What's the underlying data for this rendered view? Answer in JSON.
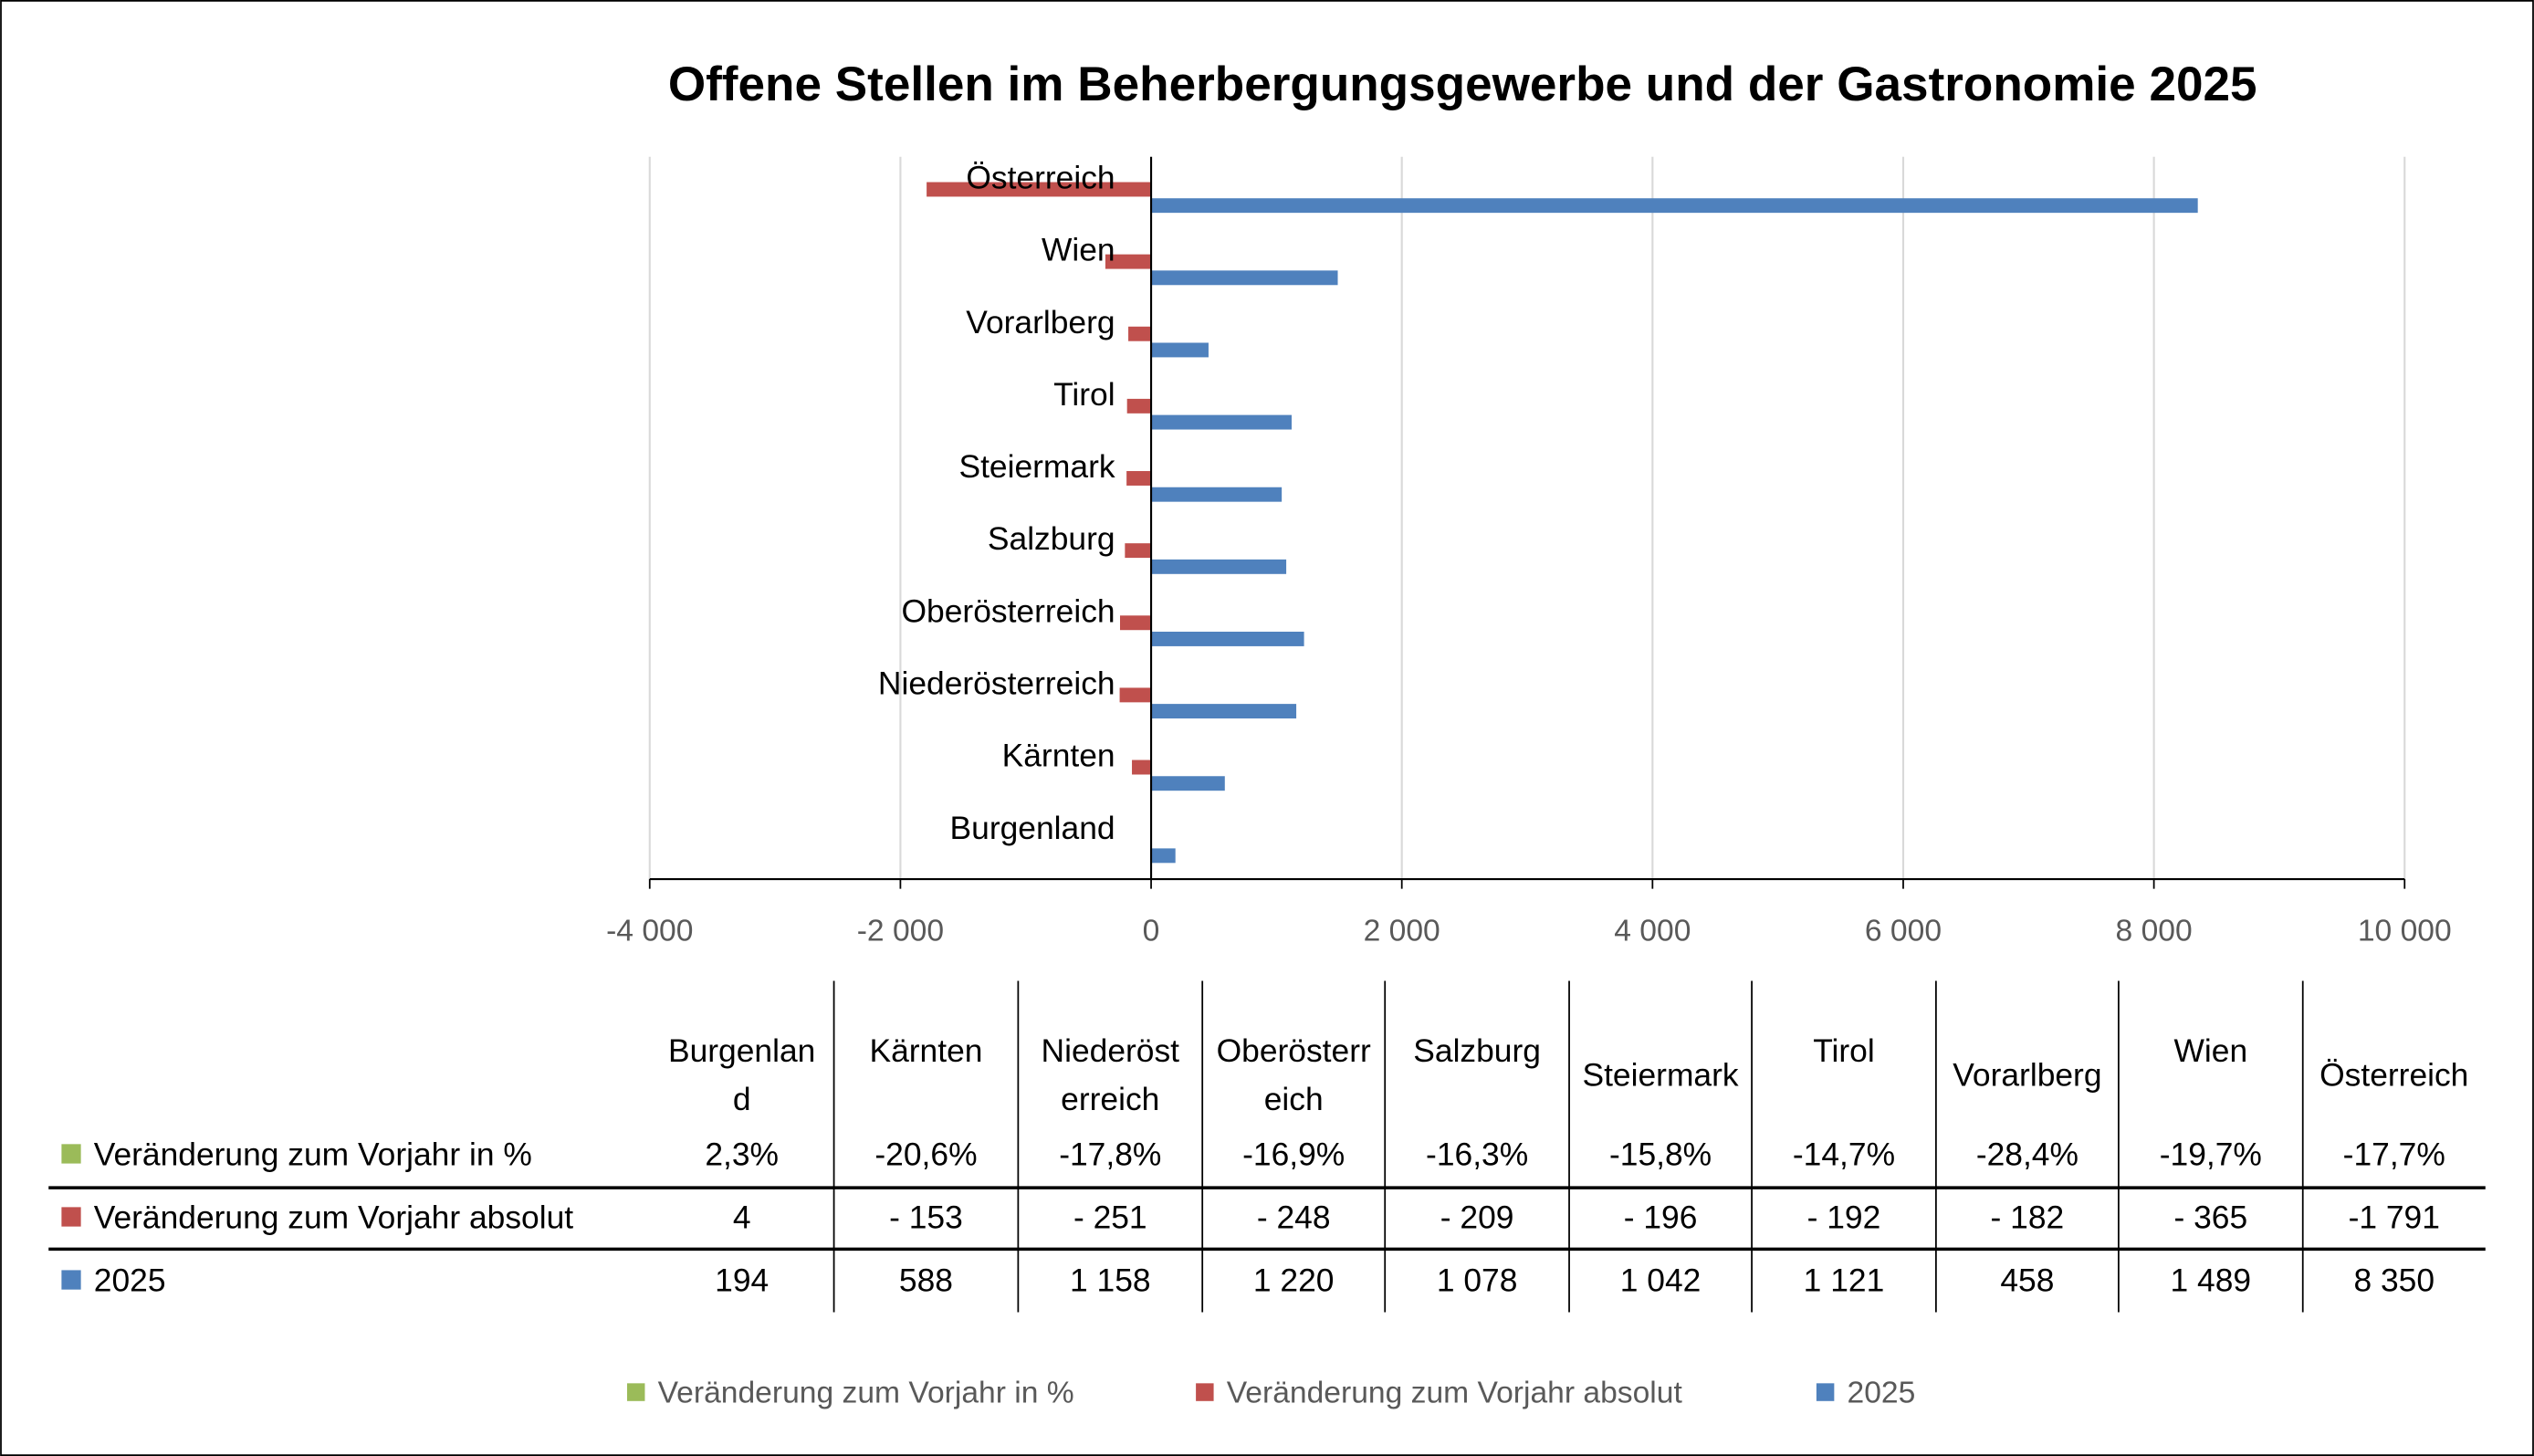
{
  "chart_data": {
    "type": "bar",
    "orientation": "horizontal",
    "title": "Offene Stellen im Beherbergungsgewerbe und der Gastronomie 2025",
    "categories": [
      "Burgenland",
      "Kärnten",
      "Niederösterreich",
      "Oberösterreich",
      "Salzburg",
      "Steiermark",
      "Tirol",
      "Vorarlberg",
      "Wien",
      "Österreich"
    ],
    "table_headers": [
      [
        "Burgenlan",
        "d"
      ],
      [
        "Kärnten"
      ],
      [
        "Niederöst",
        "erreich"
      ],
      [
        "Oberösterr",
        "eich"
      ],
      [
        "Salzburg"
      ],
      [
        "Steiermark"
      ],
      [
        "Tirol"
      ],
      [
        "Vorarlberg"
      ],
      [
        "Wien"
      ],
      [
        "Österreich"
      ]
    ],
    "series": [
      {
        "name": "Veränderung zum Vorjahr in %",
        "color": "#9BBB59",
        "values": [
          2.3,
          -20.6,
          -17.8,
          -16.9,
          -16.3,
          -15.8,
          -14.7,
          -28.4,
          -19.7,
          -17.7
        ],
        "labels": [
          "2,3%",
          "-20,6%",
          "-17,8%",
          "-16,9%",
          "-16,3%",
          "-15,8%",
          "-14,7%",
          "-28,4%",
          "-19,7%",
          "-17,7%"
        ]
      },
      {
        "name": "Veränderung zum Vorjahr absolut",
        "color": "#C0504D",
        "values": [
          4,
          -153,
          -251,
          -248,
          -209,
          -196,
          -192,
          -182,
          -365,
          -1791
        ],
        "labels": [
          "4",
          "- 153",
          "- 251",
          "- 248",
          "- 209",
          "- 196",
          "- 192",
          "- 182",
          "- 365",
          "-1 791"
        ]
      },
      {
        "name": "2025",
        "color": "#4F81BD",
        "values": [
          194,
          588,
          1158,
          1220,
          1078,
          1042,
          1121,
          458,
          1489,
          8350
        ],
        "labels": [
          "194",
          "588",
          "1 158",
          "1 220",
          "1 078",
          "1 042",
          "1 121",
          "458",
          "1 489",
          "8 350"
        ]
      }
    ],
    "xlim": [
      -4000,
      10000
    ],
    "xticks": [
      -4000,
      -2000,
      0,
      2000,
      4000,
      6000,
      8000,
      10000
    ],
    "xtick_labels": [
      "-4 000",
      "-2 000",
      "0",
      "2 000",
      "4 000",
      "6 000",
      "8 000",
      "10 000"
    ],
    "grid": true,
    "legend_placement": "bottom",
    "data_table": true
  }
}
